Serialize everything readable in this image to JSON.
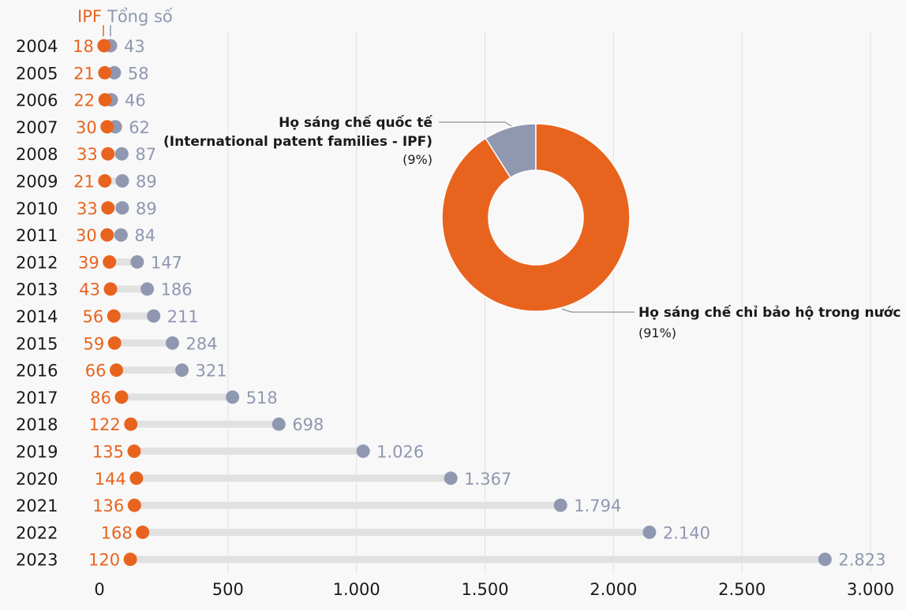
{
  "colors": {
    "ipf": "#e8641e",
    "total": "#8f98b0",
    "bar": "#e1e1e1",
    "grid": "#e2e2e2",
    "background": "#f8f8f8"
  },
  "legend": {
    "ipf_label": "IPF",
    "total_label": "Tổng số"
  },
  "chart_data": [
    {
      "type": "dumbbell",
      "categories": [
        "2004",
        "2005",
        "2006",
        "2007",
        "2008",
        "2009",
        "2010",
        "2011",
        "2012",
        "2013",
        "2014",
        "2015",
        "2016",
        "2017",
        "2018",
        "2019",
        "2020",
        "2021",
        "2022",
        "2023"
      ],
      "series": [
        {
          "name": "IPF",
          "values": [
            18,
            21,
            22,
            30,
            33,
            21,
            33,
            30,
            39,
            43,
            56,
            59,
            66,
            86,
            122,
            135,
            144,
            136,
            168,
            120
          ]
        },
        {
          "name": "Tổng số",
          "values": [
            43,
            58,
            46,
            62,
            87,
            89,
            89,
            84,
            147,
            186,
            211,
            284,
            321,
            518,
            698,
            1026,
            1367,
            1794,
            2140,
            2823
          ]
        }
      ],
      "value_labels": {
        "ipf": [
          "18",
          "21",
          "22",
          "30",
          "33",
          "21",
          "33",
          "30",
          "39",
          "43",
          "56",
          "59",
          "66",
          "86",
          "122",
          "135",
          "144",
          "136",
          "168",
          "120"
        ],
        "total": [
          "43",
          "58",
          "46",
          "62",
          "87",
          "89",
          "89",
          "84",
          "147",
          "186",
          "211",
          "284",
          "321",
          "518",
          "698",
          "1.026",
          "1.367",
          "1.794",
          "2.140",
          "2.823"
        ]
      },
      "x_ticks": [
        0,
        500,
        1000,
        1500,
        2000,
        2500,
        3000
      ],
      "x_tick_labels": [
        "0",
        "500",
        "1.000",
        "1.500",
        "2.000",
        "2.500",
        "3.000"
      ],
      "xlim": [
        0,
        3000
      ],
      "grid": "vertical"
    },
    {
      "type": "pie",
      "donut": true,
      "slices": [
        {
          "label_line1": "Họ sáng chế quốc tế",
          "label_line2": "(International patent families - IPF)",
          "pct_label": "(9%)",
          "value": 9,
          "color": "#8f98b0"
        },
        {
          "label_line1": "Họ sáng chế chỉ bảo hộ trong nước",
          "label_line2": "",
          "pct_label": "(91%)",
          "value": 91,
          "color": "#e8641e"
        }
      ]
    }
  ]
}
